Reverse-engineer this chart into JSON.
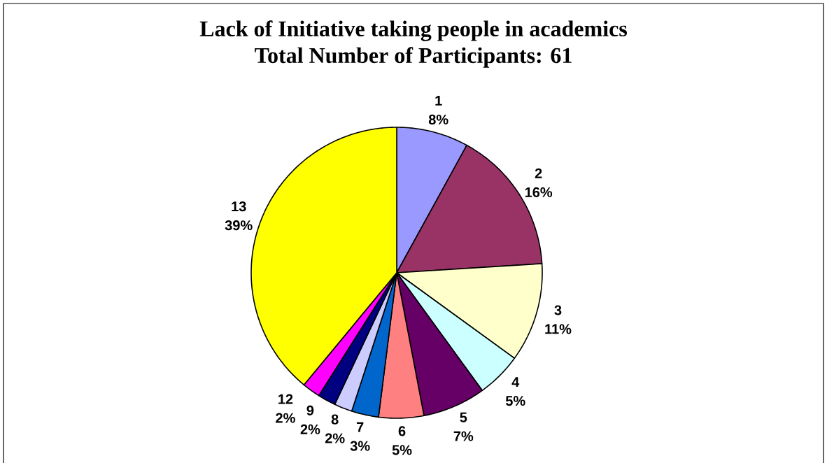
{
  "chart_data": {
    "type": "pie",
    "title": "Lack of Initiative taking people in academics",
    "subtitle": "Total Number of Participants: 61",
    "categories": [
      "1",
      "2",
      "3",
      "4",
      "5",
      "6",
      "7",
      "8",
      "9",
      "12",
      "13"
    ],
    "values": [
      8,
      16,
      11,
      5,
      7,
      5,
      3,
      2,
      2,
      2,
      39
    ],
    "colors": [
      "#9999ff",
      "#993366",
      "#ffffcc",
      "#ccffff",
      "#660066",
      "#ff8080",
      "#0066cc",
      "#ccccff",
      "#000080",
      "#ff00ff",
      "#ffff00"
    ],
    "value_labels": [
      "8%",
      "16%",
      "11%",
      "5%",
      "7%",
      "5%",
      "3%",
      "2%",
      "2%",
      "2%",
      "39%"
    ]
  }
}
